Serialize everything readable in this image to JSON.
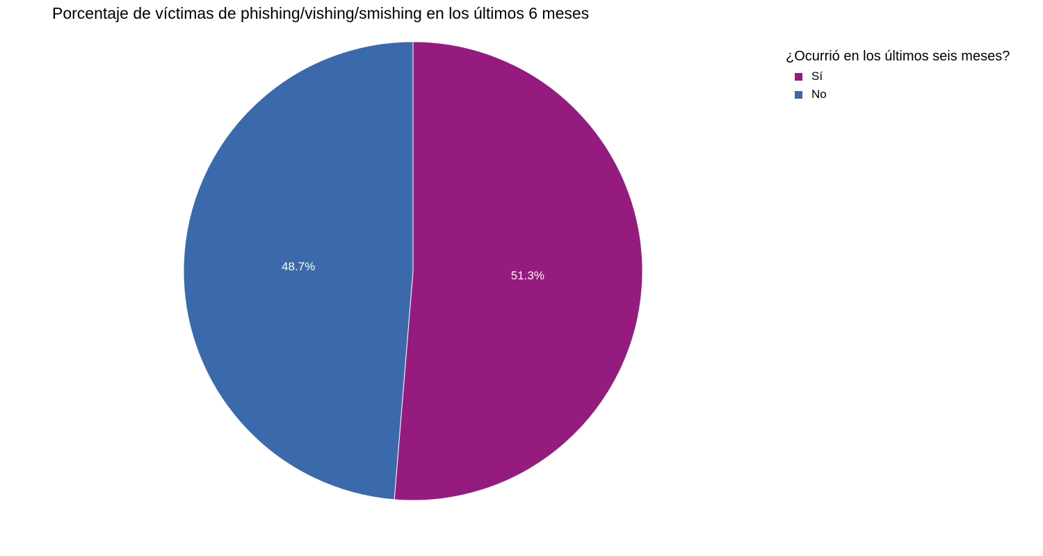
{
  "chart_data": {
    "type": "pie",
    "title": "Porcentaje de víctimas de phishing/vishing/smishing en los últimos 6 meses",
    "legend_title": "¿Ocurrió en los últimos seis meses?",
    "legend_position": "top-right",
    "slices": [
      {
        "label": "Sí",
        "value": 51.3,
        "display": "51.3%",
        "color": "#951B7E"
      },
      {
        "label": "No",
        "value": 48.7,
        "display": "48.7%",
        "color": "#3A69AC"
      }
    ]
  }
}
